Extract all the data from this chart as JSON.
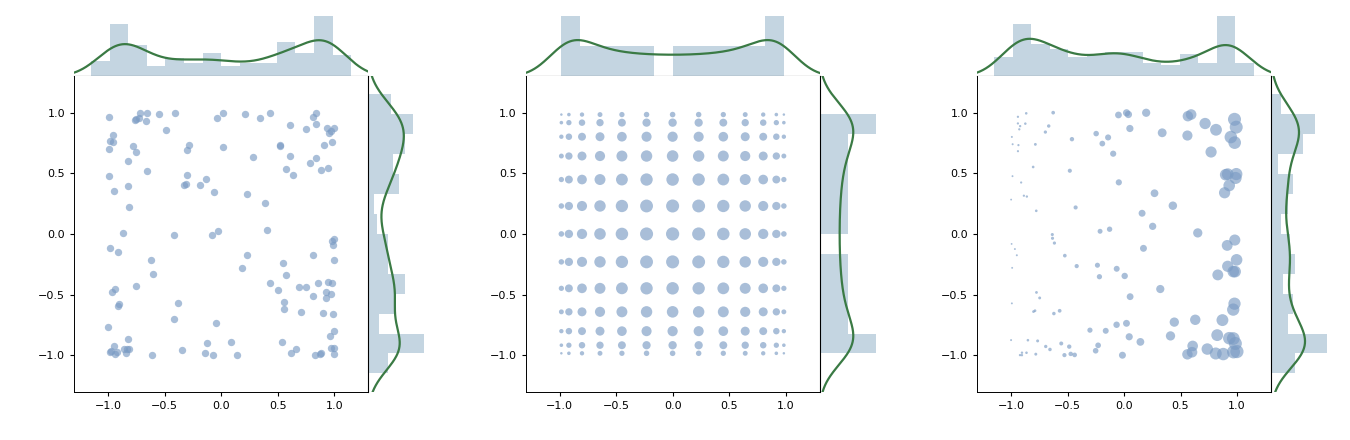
{
  "fig_width": 13.5,
  "fig_height": 4.4,
  "dpi": 100,
  "dot_color": "#7b9cc4",
  "dot_alpha": 0.65,
  "hist_color": "#b0c8d8",
  "hist_alpha": 0.75,
  "kde_color": "#3a7a44",
  "kde_lw": 1.6,
  "xlim": [
    -1.3,
    1.3
  ],
  "ylim": [
    -1.3,
    1.3
  ],
  "xticks": [
    -1.0,
    -0.5,
    0.0,
    0.5,
    1.0
  ],
  "yticks": [
    -1.0,
    -0.5,
    0.0,
    0.5,
    1.0
  ],
  "n_iid": 130,
  "n_quad": 13,
  "n_ope": 130
}
